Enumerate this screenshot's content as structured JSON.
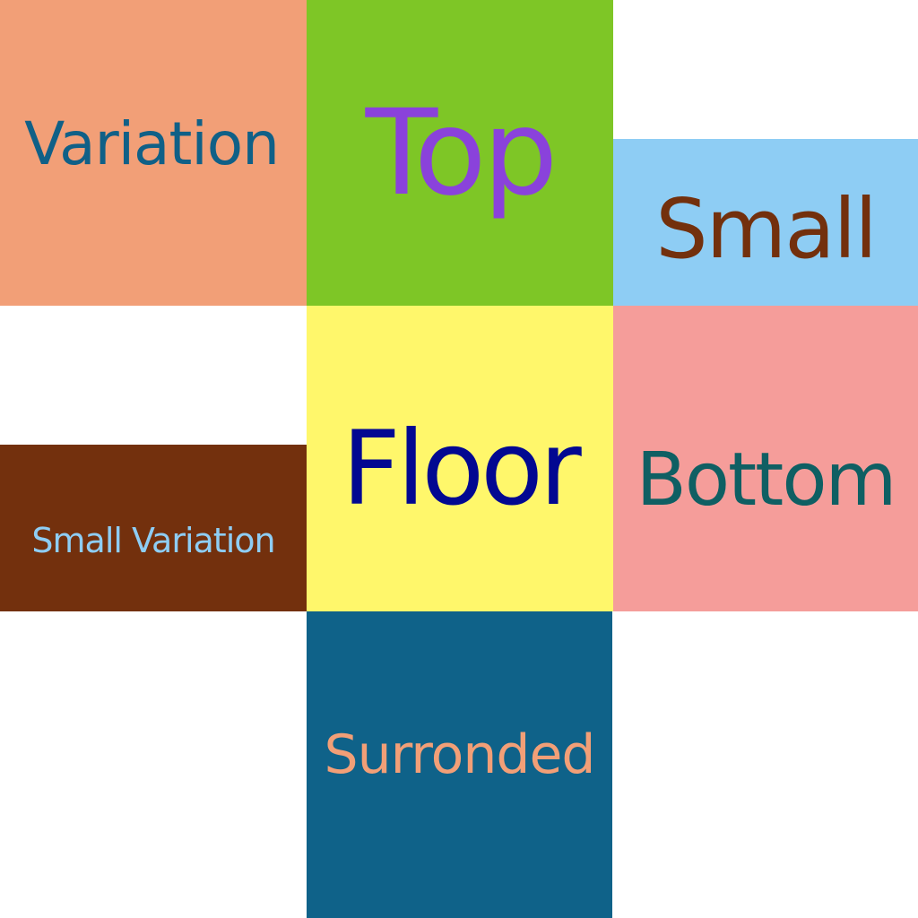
{
  "tiles": {
    "variation": {
      "label": "Variation",
      "background": "#F29F77",
      "text_color": "#106087"
    },
    "top": {
      "label": "Top",
      "background": "#7EC626",
      "text_color": "#8A42DB"
    },
    "small": {
      "label": "Small",
      "background": "#8ECDF4",
      "text_color": "#73300D"
    },
    "small_variation": {
      "label": "Small Variation",
      "background": "#73300D",
      "text_color": "#8ECDF4"
    },
    "floor": {
      "label": "Floor",
      "background": "#FFF76B",
      "text_color": "#020891"
    },
    "bottom": {
      "label": "Bottom",
      "background": "#F59D9A",
      "text_color": "#0F5F63"
    },
    "surronded": {
      "label": "Surronded",
      "background": "#0F6289",
      "text_color": "#F29F77"
    }
  }
}
